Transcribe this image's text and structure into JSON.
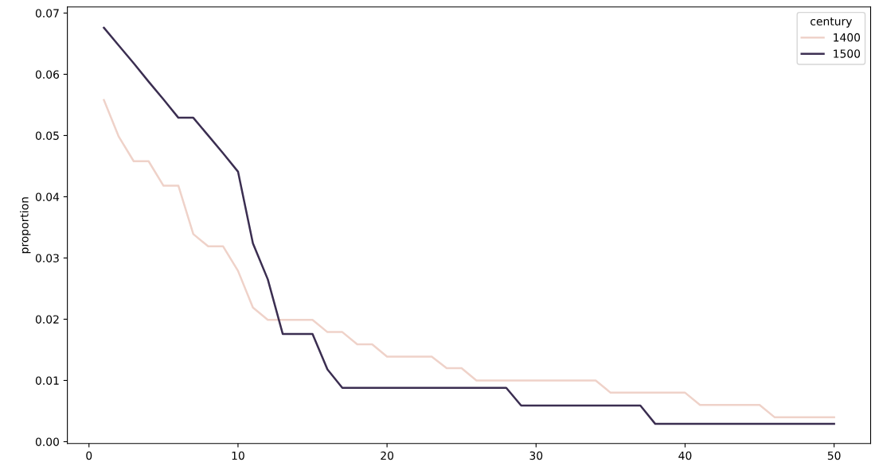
{
  "chart_data": {
    "type": "line",
    "ylabel": "proportion",
    "legend_title": "century",
    "legend": "top right",
    "grid": false,
    "x": [
      1,
      2,
      3,
      4,
      5,
      6,
      7,
      8,
      9,
      10,
      11,
      12,
      13,
      14,
      15,
      16,
      17,
      18,
      19,
      20,
      21,
      22,
      23,
      24,
      25,
      26,
      27,
      28,
      29,
      30,
      31,
      32,
      33,
      34,
      35,
      36,
      37,
      38,
      39,
      40,
      41,
      42,
      43,
      44,
      45,
      46,
      47,
      48,
      49,
      50
    ],
    "series": [
      {
        "name": "1400",
        "color": "#efd2c9",
        "values": [
          0.0558,
          0.0498,
          0.0458,
          0.0458,
          0.0418,
          0.0418,
          0.0339,
          0.0319,
          0.0319,
          0.0279,
          0.0219,
          0.0199,
          0.0199,
          0.0199,
          0.0199,
          0.0179,
          0.0179,
          0.0159,
          0.0159,
          0.0139,
          0.0139,
          0.0139,
          0.0139,
          0.012,
          0.012,
          0.01,
          0.01,
          0.01,
          0.01,
          0.01,
          0.01,
          0.01,
          0.01,
          0.01,
          0.008,
          0.008,
          0.008,
          0.008,
          0.008,
          0.008,
          0.006,
          0.006,
          0.006,
          0.006,
          0.006,
          0.004,
          0.004,
          0.004,
          0.004,
          0.004
        ]
      },
      {
        "name": "1500",
        "color": "#3b2e51",
        "values": [
          0.0676,
          0.0647,
          0.0618,
          0.0588,
          0.0559,
          0.0529,
          0.0529,
          0.05,
          0.0471,
          0.0441,
          0.0324,
          0.0265,
          0.0176,
          0.0176,
          0.0176,
          0.0118,
          0.0088,
          0.0088,
          0.0088,
          0.0088,
          0.0088,
          0.0088,
          0.0088,
          0.0088,
          0.0088,
          0.0088,
          0.0088,
          0.0088,
          0.0059,
          0.0059,
          0.0059,
          0.0059,
          0.0059,
          0.0059,
          0.0059,
          0.0059,
          0.0059,
          0.0029,
          0.0029,
          0.0029,
          0.0029,
          0.0029,
          0.0029,
          0.0029,
          0.0029,
          0.0029,
          0.0029,
          0.0029,
          0.0029,
          0.0029
        ]
      }
    ],
    "xlim": [
      -1.45,
      52.45
    ],
    "ylim": [
      -0.0003,
      0.071
    ],
    "xticks": [
      0,
      10,
      20,
      30,
      40,
      50
    ],
    "yticks": [
      {
        "value": 0,
        "label": "0.00"
      },
      {
        "value": 0.01,
        "label": "0.01"
      },
      {
        "value": 0.02,
        "label": "0.02"
      },
      {
        "value": 0.03,
        "label": "0.03"
      },
      {
        "value": 0.04,
        "label": "0.04"
      },
      {
        "value": 0.05,
        "label": "0.05"
      },
      {
        "value": 0.06,
        "label": "0.06"
      },
      {
        "value": 0.07,
        "label": "0.07"
      }
    ]
  }
}
